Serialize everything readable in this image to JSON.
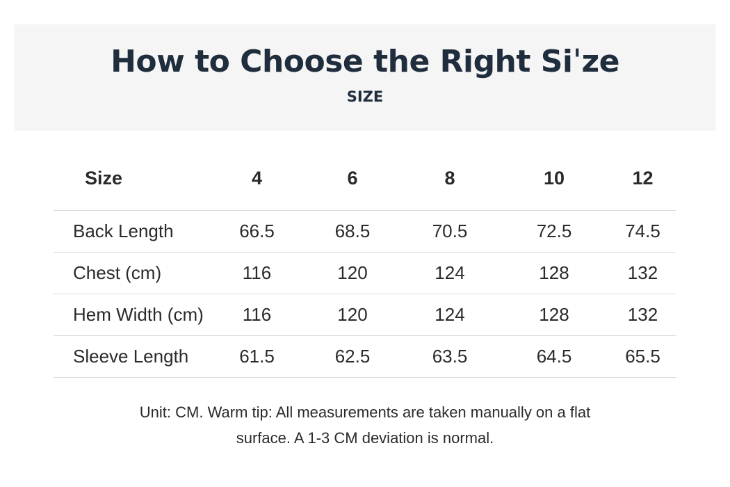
{
  "header": {
    "title": "How to Choose the Right Siˈze",
    "subtitle": "SIZE"
  },
  "table": {
    "corner_label": "Size",
    "sizes": [
      "4",
      "6",
      "8",
      "10",
      "12"
    ],
    "rows": [
      {
        "label": "Back Length",
        "values": [
          "66.5",
          "68.5",
          "70.5",
          "72.5",
          "74.5"
        ]
      },
      {
        "label": "Chest (cm)",
        "values": [
          "116",
          "120",
          "124",
          "128",
          "132"
        ]
      },
      {
        "label": "Hem Width (cm)",
        "values": [
          "116",
          "120",
          "124",
          "128",
          "132"
        ]
      },
      {
        "label": "Sleeve Length",
        "values": [
          "61.5",
          "62.5",
          "63.5",
          "64.5",
          "65.5"
        ]
      }
    ]
  },
  "note": {
    "line1": "Unit: CM. Warm tip: All measurements are taken manually on a flat",
    "line2": "surface. A 1-3 CM deviation is normal."
  },
  "colors": {
    "header_background": "#f5f5f5",
    "title_text": "#1f2d3d",
    "body_text": "#2a2a2a",
    "divider": "#d9d9d9"
  }
}
